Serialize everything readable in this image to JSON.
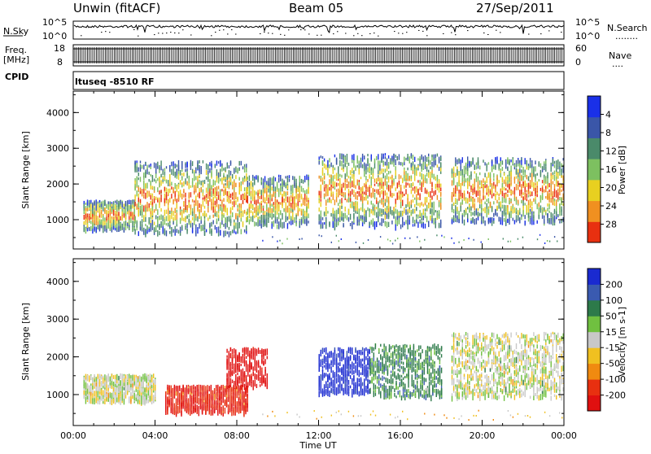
{
  "header": {
    "station": "Unwin (fitACF)",
    "beam": "Beam 05",
    "date": "27/Sep/2011"
  },
  "noise_panel": {
    "left_label": "N.Sky",
    "right_label": "N.Search",
    "right_legend": "........",
    "left_ticks": [
      "10^5",
      "10^0"
    ],
    "right_ticks": [
      "10^5",
      "10^0"
    ]
  },
  "freq_panel": {
    "left_label_1": "Freq.",
    "left_label_2": "[MHz]",
    "right_label": "Nave",
    "right_legend": "....",
    "left_ticks": [
      "18",
      "8"
    ],
    "right_ticks": [
      "60",
      "0"
    ]
  },
  "cpid": {
    "label": "CPID",
    "value": "ltuseq -8510 RF"
  },
  "chart_data": [
    {
      "type": "heatmap",
      "name": "power",
      "ylabel": "Slant Range [km]",
      "colorbar_label": "Power [dB]",
      "x_ticks": [
        "00:00",
        "04:00",
        "08:00",
        "12:00",
        "16:00",
        "20:00",
        "00:00"
      ],
      "y_ticks": [
        "1000",
        "2000",
        "3000",
        "4000"
      ],
      "ylim": [
        180,
        4600
      ],
      "colorbar_ticks": [
        "4",
        "8",
        "12",
        "16",
        "20",
        "24",
        "28"
      ],
      "colorbar_colors": [
        "#1a30e8",
        "#3a56a8",
        "#4a8a6a",
        "#7dc060",
        "#e8d020",
        "#f09020",
        "#e83010"
      ],
      "regions": [
        {
          "x0": 0.5,
          "x1": 3.0,
          "y0": 700,
          "y1": 1500
        },
        {
          "x0": 3.0,
          "x1": 8.5,
          "y0": 600,
          "y1": 2600
        },
        {
          "x0": 8.5,
          "x1": 11.5,
          "y0": 800,
          "y1": 2200
        },
        {
          "x0": 12.0,
          "x1": 18.0,
          "y0": 800,
          "y1": 2800
        },
        {
          "x0": 18.5,
          "x1": 24.0,
          "y0": 900,
          "y1": 2700
        }
      ]
    },
    {
      "type": "heatmap",
      "name": "velocity",
      "ylabel": "Slant Range [km]",
      "xlabel": "Time UT",
      "colorbar_label": "Velocity [m s-1]",
      "x_ticks": [
        "00:00",
        "04:00",
        "08:00",
        "12:00",
        "16:00",
        "20:00",
        "00:00"
      ],
      "y_ticks": [
        "1000",
        "2000",
        "3000",
        "4000"
      ],
      "ylim": [
        180,
        4600
      ],
      "colorbar_ticks": [
        "200",
        "100",
        "50",
        "15",
        "-15",
        "-50",
        "-100",
        "-200"
      ],
      "colorbar_colors": [
        "#1a2ad0",
        "#3a5ab0",
        "#2d7a4a",
        "#70c040",
        "#c8c8c8",
        "#f0c020",
        "#f08a10",
        "#e83010",
        "#e01010"
      ],
      "regions": [
        {
          "x0": 0.5,
          "x1": 4.0,
          "y0": 800,
          "y1": 1500,
          "v": 0
        },
        {
          "x0": 4.5,
          "x1": 8.5,
          "y0": 500,
          "y1": 1200,
          "v": -150
        },
        {
          "x0": 7.5,
          "x1": 9.5,
          "y0": 1200,
          "y1": 2200,
          "v": -200
        },
        {
          "x0": 12.0,
          "x1": 14.5,
          "y0": 1000,
          "y1": 2200,
          "v": 200
        },
        {
          "x0": 14.5,
          "x1": 18.0,
          "y0": 900,
          "y1": 2300,
          "v": 50
        },
        {
          "x0": 18.5,
          "x1": 24.0,
          "y0": 900,
          "y1": 2600,
          "v": 0
        }
      ]
    }
  ]
}
